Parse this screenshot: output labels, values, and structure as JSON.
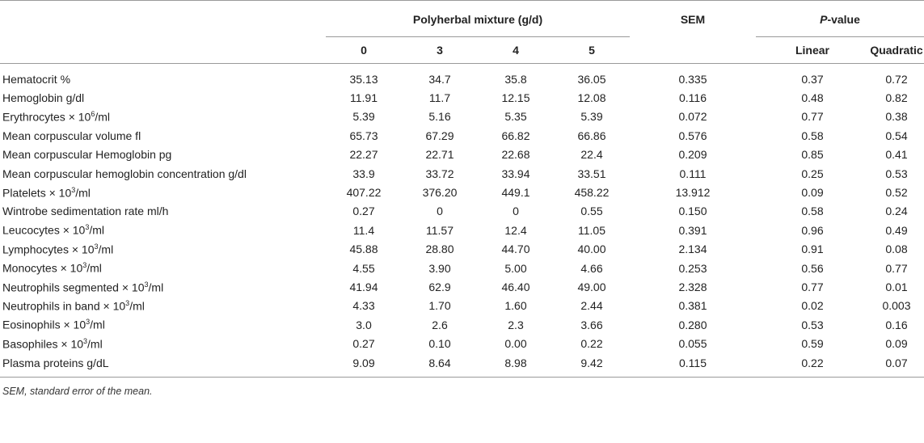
{
  "header": {
    "group_polyherbal": "Polyherbal mixture (g/d)",
    "sem": "SEM",
    "pvalue_italic": "P",
    "pvalue_rest": "-value",
    "doses": [
      "0",
      "3",
      "4",
      "5"
    ],
    "linear": "Linear",
    "quadratic": "Quadratic"
  },
  "rows": [
    {
      "label_pre": "Hematocrit %",
      "sup": "",
      "label_post": "",
      "v": [
        "35.13",
        "34.7",
        "35.8",
        "36.05",
        "0.335",
        "0.37",
        "0.72"
      ]
    },
    {
      "label_pre": "Hemoglobin g/dl",
      "sup": "",
      "label_post": "",
      "v": [
        "11.91",
        "11.7",
        "12.15",
        "12.08",
        "0.116",
        "0.48",
        "0.82"
      ]
    },
    {
      "label_pre": "Erythrocytes × 10",
      "sup": "6",
      "label_post": "/ml",
      "v": [
        "5.39",
        "5.16",
        "5.35",
        "5.39",
        "0.072",
        "0.77",
        "0.38"
      ]
    },
    {
      "label_pre": "Mean corpuscular volume fl",
      "sup": "",
      "label_post": "",
      "v": [
        "65.73",
        "67.29",
        "66.82",
        "66.86",
        "0.576",
        "0.58",
        "0.54"
      ]
    },
    {
      "label_pre": "Mean corpuscular Hemoglobin pg",
      "sup": "",
      "label_post": "",
      "v": [
        "22.27",
        "22.71",
        "22.68",
        "22.4",
        "0.209",
        "0.85",
        "0.41"
      ]
    },
    {
      "label_pre": "Mean corpuscular hemoglobin concentration g/dl",
      "sup": "",
      "label_post": "",
      "v": [
        "33.9",
        "33.72",
        "33.94",
        "33.51",
        "0.111",
        "0.25",
        "0.53"
      ]
    },
    {
      "label_pre": "Platelets × 10",
      "sup": "3",
      "label_post": "/ml",
      "v": [
        "407.22",
        "376.20",
        "449.1",
        "458.22",
        "13.912",
        "0.09",
        "0.52"
      ]
    },
    {
      "label_pre": "Wintrobe sedimentation rate ml/h",
      "sup": "",
      "label_post": "",
      "v": [
        "0.27",
        "0",
        "0",
        "0.55",
        "0.150",
        "0.58",
        "0.24"
      ]
    },
    {
      "label_pre": "Leucocytes × 10",
      "sup": "3",
      "label_post": "/ml",
      "v": [
        "11.4",
        "11.57",
        "12.4",
        "11.05",
        "0.391",
        "0.96",
        "0.49"
      ]
    },
    {
      "label_pre": "Lymphocytes × 10",
      "sup": "3",
      "label_post": "/ml",
      "v": [
        "45.88",
        "28.80",
        "44.70",
        "40.00",
        "2.134",
        "0.91",
        "0.08"
      ]
    },
    {
      "label_pre": "Monocytes × 10",
      "sup": "3",
      "label_post": "/ml",
      "v": [
        "4.55",
        "3.90",
        "5.00",
        "4.66",
        "0.253",
        "0.56",
        "0.77"
      ]
    },
    {
      "label_pre": "Neutrophils segmented × 10",
      "sup": "3",
      "label_post": "/ml",
      "v": [
        "41.94",
        "62.9",
        "46.40",
        "49.00",
        "2.328",
        "0.77",
        "0.01"
      ]
    },
    {
      "label_pre": "Neutrophils in band × 10",
      "sup": "3",
      "label_post": "/ml",
      "v": [
        "4.33",
        "1.70",
        "1.60",
        "2.44",
        "0.381",
        "0.02",
        "0.003"
      ]
    },
    {
      "label_pre": "Eosinophils × 10",
      "sup": "3",
      "label_post": "/ml",
      "v": [
        "3.0",
        "2.6",
        "2.3",
        "3.66",
        "0.280",
        "0.53",
        "0.16"
      ]
    },
    {
      "label_pre": "Basophiles × 10",
      "sup": "3",
      "label_post": "/ml",
      "v": [
        "0.27",
        "0.10",
        "0.00",
        "0.22",
        "0.055",
        "0.59",
        "0.09"
      ]
    },
    {
      "label_pre": "Plasma proteins g/dL",
      "sup": "",
      "label_post": "",
      "v": [
        "9.09",
        "8.64",
        "8.98",
        "9.42",
        "0.115",
        "0.22",
        "0.07"
      ]
    }
  ],
  "footnote": "SEM, standard error of the mean."
}
